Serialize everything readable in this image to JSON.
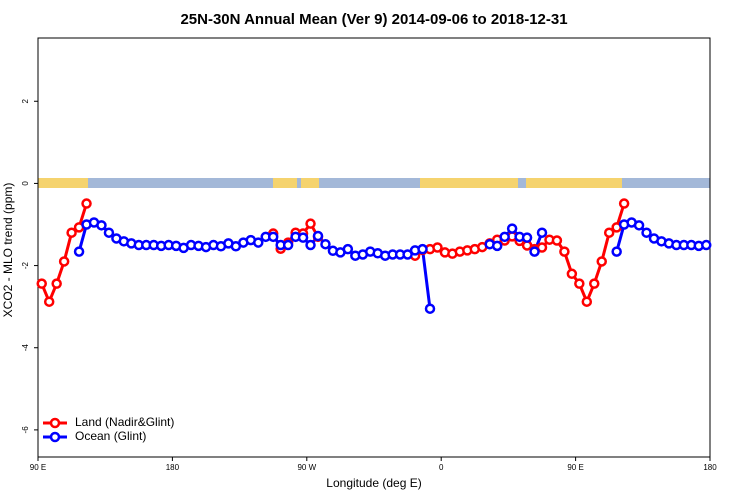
{
  "chart_data": {
    "type": "line",
    "title": "25N-30N Annual Mean (Ver 9)   2014-09-06 to 2018-12-31",
    "x_label": "Longitude (deg E)",
    "y_label": "XCO2 - MLO trend (ppm)",
    "xlim": [
      90,
      540
    ],
    "ylim": [
      -6.66,
      3.54
    ],
    "xticks": [
      {
        "value": 90,
        "label": "90 E"
      },
      180,
      {
        "value": 270,
        "label": "90 W"
      },
      {
        "value": 360,
        "label": "0"
      },
      {
        "value": 450,
        "label": "90 E"
      },
      {
        "value": 540,
        "label": "180"
      }
    ],
    "yticks": [
      -6,
      -4,
      -2,
      0,
      2
    ],
    "grid": false,
    "legend": "bottom-left",
    "x": [
      92.5,
      97.5,
      102.5,
      107.5,
      112.5,
      117.5,
      122.5,
      127.5,
      132.5,
      137.5,
      142.5,
      147.5,
      152.5,
      157.5,
      162.5,
      167.5,
      172.5,
      177.5,
      182.5,
      187.5,
      192.5,
      197.5,
      202.5,
      207.5,
      212.5,
      217.5,
      222.5,
      227.5,
      232.5,
      237.5,
      242.5,
      247.5,
      252.5,
      257.5,
      262.5,
      267.5,
      272.5,
      277.5,
      282.5,
      287.5,
      292.5,
      297.5,
      302.5,
      307.5,
      312.5,
      317.5,
      322.5,
      327.5,
      332.5,
      337.5,
      342.5,
      347.5,
      352.5,
      357.5,
      362.5,
      367.5,
      372.5,
      377.5,
      382.5,
      387.5,
      392.5,
      397.5,
      402.5,
      407.5,
      412.5,
      417.5,
      422.5,
      427.5,
      432.5,
      437.5,
      442.5,
      447.5,
      452.5,
      457.5,
      462.5,
      467.5,
      472.5,
      477.5,
      482.5,
      487.5,
      492.5,
      497.5,
      502.5,
      507.5,
      512.5,
      517.5,
      522.5,
      527.5,
      532.5,
      537.5
    ],
    "series": [
      {
        "name": "Land (Nadir&Glint)",
        "color": "#ff0000",
        "values": [
          -2.44,
          -2.88,
          -2.44,
          -1.9,
          -1.2,
          -1.07,
          -0.49,
          null,
          null,
          null,
          null,
          null,
          null,
          null,
          null,
          null,
          null,
          null,
          null,
          null,
          null,
          null,
          null,
          null,
          null,
          null,
          null,
          null,
          null,
          null,
          null,
          -1.22,
          -1.59,
          -1.44,
          -1.2,
          -1.22,
          -0.98,
          -1.3,
          null,
          null,
          null,
          null,
          null,
          null,
          null,
          null,
          null,
          null,
          null,
          null,
          -1.76,
          -1.62,
          -1.6,
          -1.56,
          -1.68,
          -1.71,
          -1.66,
          -1.63,
          -1.6,
          -1.55,
          -1.46,
          -1.37,
          -1.39,
          -1.29,
          -1.4,
          -1.51,
          -1.6,
          -1.56,
          -1.37,
          -1.39,
          -1.66,
          -2.2,
          -2.44,
          -2.88,
          -2.44,
          -1.9,
          -1.2,
          -1.07,
          -0.49,
          null,
          null,
          null,
          null,
          null,
          null,
          null,
          null,
          null,
          null,
          null
        ]
      },
      {
        "name": "Ocean (Glint)",
        "color": "#0000ff",
        "values": [
          null,
          null,
          null,
          null,
          null,
          -1.66,
          -1.0,
          -0.95,
          -1.02,
          -1.2,
          -1.34,
          -1.41,
          -1.46,
          -1.5,
          -1.5,
          -1.5,
          -1.52,
          -1.5,
          -1.52,
          -1.57,
          -1.5,
          -1.52,
          -1.55,
          -1.5,
          -1.53,
          -1.46,
          -1.53,
          -1.44,
          -1.38,
          -1.44,
          -1.3,
          -1.3,
          -1.5,
          -1.5,
          -1.3,
          -1.32,
          -1.5,
          -1.28,
          -1.48,
          -1.64,
          -1.68,
          -1.6,
          -1.76,
          -1.73,
          -1.66,
          -1.7,
          -1.76,
          -1.73,
          -1.73,
          -1.73,
          -1.63,
          -1.6,
          -3.05,
          null,
          null,
          null,
          null,
          null,
          null,
          null,
          -1.48,
          -1.52,
          -1.3,
          -1.1,
          -1.3,
          -1.32,
          -1.66,
          -1.2,
          null,
          null,
          null,
          null,
          null,
          null,
          null,
          null,
          null,
          -1.66,
          -1.0,
          -0.95,
          -1.02,
          -1.2,
          -1.34,
          -1.41,
          -1.46,
          -1.5,
          -1.5,
          -1.5,
          -1.52,
          -1.5
        ]
      }
    ]
  }
}
